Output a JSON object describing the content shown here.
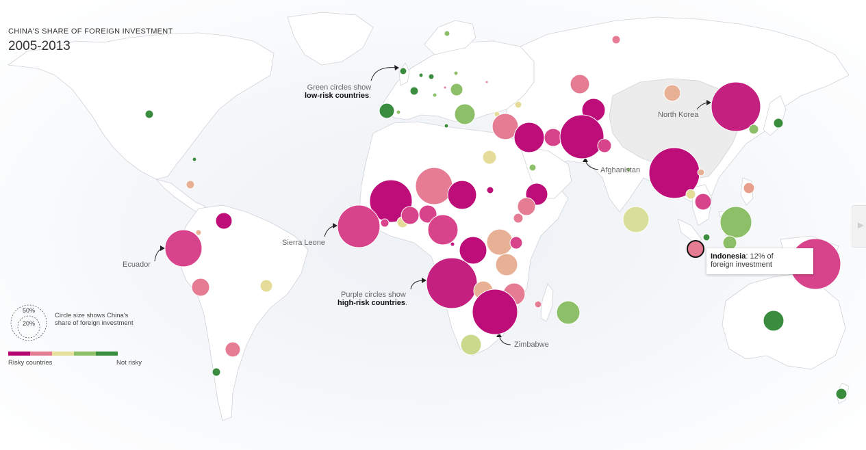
{
  "header": {
    "kicker": "CHINA'S SHARE OF FOREIGN INVESTMENT",
    "title": "2005-2013"
  },
  "annotations": {
    "green_line1": "Green circles show",
    "green_bold": "low-risk countries",
    "purple_line1": "Purple circles show",
    "purple_bold": "high-risk countries",
    "period": "."
  },
  "country_labels": {
    "north_korea": "North Korea",
    "afghanistan": "Afghanistan",
    "sierra_leone": "Sierra Leone",
    "ecuador": "Ecuador",
    "zimbabwe": "Zimbabwe"
  },
  "tooltip": {
    "country": "Indonesia",
    "text": ": 12% of",
    "text2": "foreign investment"
  },
  "legend": {
    "size_text": "Circle size shows China's share of foreign investment",
    "ring_large": "50%",
    "ring_small": "20%",
    "left_label": "Risky countries",
    "right_label": "Not risky",
    "scale_colors": [
      "#b5066f",
      "#e57c93",
      "#e4e09c",
      "#8cbf68",
      "#3a8c3e"
    ]
  },
  "colors": {
    "risk5": "#bd0d78",
    "risk4": "#d8448c",
    "risk3": "#e57c93",
    "risk2b": "#e8b094",
    "risk2": "#e4dc98",
    "risk1": "#8cbf68",
    "risk0": "#3a8c3e"
  }
}
